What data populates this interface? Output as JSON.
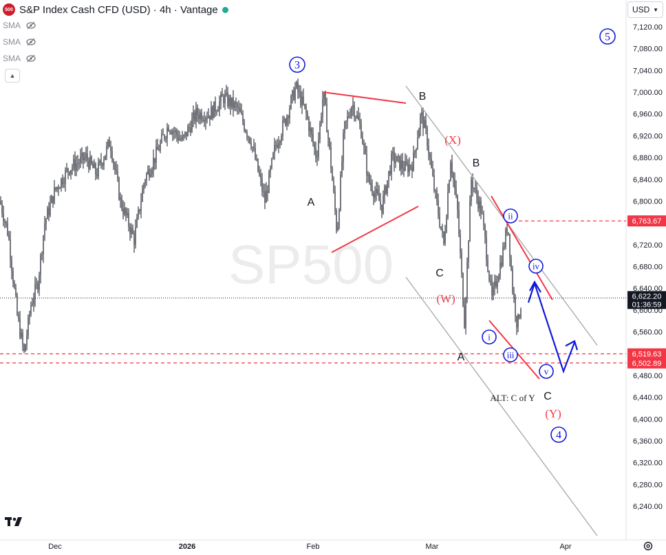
{
  "header": {
    "logo_text": "500",
    "title": "S&P Index Cash CFD (USD) · 4h · Vantage",
    "market_status_color": "#22ab94"
  },
  "indicators": [
    {
      "label": "SMA",
      "icon": "eye-crossed-icon"
    },
    {
      "label": "SMA",
      "icon": "eye-crossed-icon"
    },
    {
      "label": "SMA",
      "icon": "eye-crossed-icon"
    }
  ],
  "collapse_icon": "chevron-up-icon",
  "currency_button": {
    "label": "USD"
  },
  "watermark": "SP500",
  "colors": {
    "candle": "#131722",
    "redline": "#f23645",
    "blue": "#1018d8",
    "grey": "#a6a6a6",
    "label_red_bg": "#f23645",
    "current_price_bg": "#131722"
  },
  "chart_data": {
    "type": "candlestick",
    "timeframe": "4h",
    "y_range": [
      6240,
      7140
    ],
    "y_ticks": [
      "7,120.00",
      "7,080.00",
      "7,040.00",
      "7,000.00",
      "6,960.00",
      "6,920.00",
      "6,880.00",
      "6,840.00",
      "6,800.00",
      "6,760.00",
      "6,720.00",
      "6,680.00",
      "6,640.00",
      "6,600.00",
      "6,560.00",
      "6,520.00",
      "6,480.00",
      "6,440.00",
      "6,400.00",
      "6,360.00",
      "6,320.00",
      "6,280.00",
      "6,240.00"
    ],
    "x_labels": [
      "Dec",
      "2026",
      "Feb",
      "Mar",
      "Apr"
    ],
    "price_path": [
      [
        0,
        6800
      ],
      [
        12,
        6740
      ],
      [
        25,
        6590
      ],
      [
        35,
        6520
      ],
      [
        45,
        6610
      ],
      [
        55,
        6650
      ],
      [
        65,
        6760
      ],
      [
        80,
        6820
      ],
      [
        100,
        6860
      ],
      [
        125,
        6880
      ],
      [
        140,
        6850
      ],
      [
        160,
        6910
      ],
      [
        175,
        6800
      ],
      [
        195,
        6730
      ],
      [
        210,
        6840
      ],
      [
        225,
        6880
      ],
      [
        245,
        6940
      ],
      [
        265,
        6910
      ],
      [
        285,
        6960
      ],
      [
        305,
        6960
      ],
      [
        325,
        6990
      ],
      [
        345,
        6970
      ],
      [
        365,
        6910
      ],
      [
        385,
        6800
      ],
      [
        400,
        6900
      ],
      [
        415,
        6950
      ],
      [
        430,
        7010
      ],
      [
        445,
        6960
      ],
      [
        460,
        6880
      ],
      [
        470,
        7000
      ],
      [
        480,
        6880
      ],
      [
        490,
        6740
      ],
      [
        500,
        6930
      ],
      [
        512,
        6980
      ],
      [
        525,
        6930
      ],
      [
        535,
        6840
      ],
      [
        555,
        6790
      ],
      [
        570,
        6880
      ],
      [
        590,
        6860
      ],
      [
        600,
        6870
      ],
      [
        612,
        6960
      ],
      [
        620,
        6920
      ],
      [
        630,
        6830
      ],
      [
        645,
        6720
      ],
      [
        655,
        6880
      ],
      [
        665,
        6780
      ],
      [
        675,
        6580
      ],
      [
        685,
        6840
      ],
      [
        700,
        6780
      ],
      [
        715,
        6620
      ],
      [
        730,
        6700
      ],
      [
        738,
        6760
      ],
      [
        745,
        6640
      ],
      [
        752,
        6570
      ],
      [
        758,
        6620
      ]
    ],
    "annotations": {
      "wave_labels_blue_circled": [
        "3",
        "5",
        "4"
      ],
      "wave_labels_red": [
        "(X)",
        "(W)",
        "(Y)"
      ],
      "wave_labels_black": [
        "B",
        "A",
        "C",
        "B",
        "A",
        "C"
      ],
      "wave_labels_blue_roman": [
        "ii",
        "iv",
        "i",
        "iii",
        "v"
      ],
      "note": "ALT: C of Y"
    },
    "horizontal_levels": [
      {
        "value": 6763.67,
        "label": "6,763.67",
        "style": "dashed-red"
      },
      {
        "value": 6622.2,
        "label": "6,622.20",
        "style": "dotted-current"
      },
      {
        "value": 6519.63,
        "label": "6,519.63",
        "style": "dashed-red"
      },
      {
        "value": 6502.89,
        "label": "6,502.89",
        "style": "dashed-red"
      }
    ],
    "current_price": "6,622.20",
    "countdown": "01:36:59"
  }
}
